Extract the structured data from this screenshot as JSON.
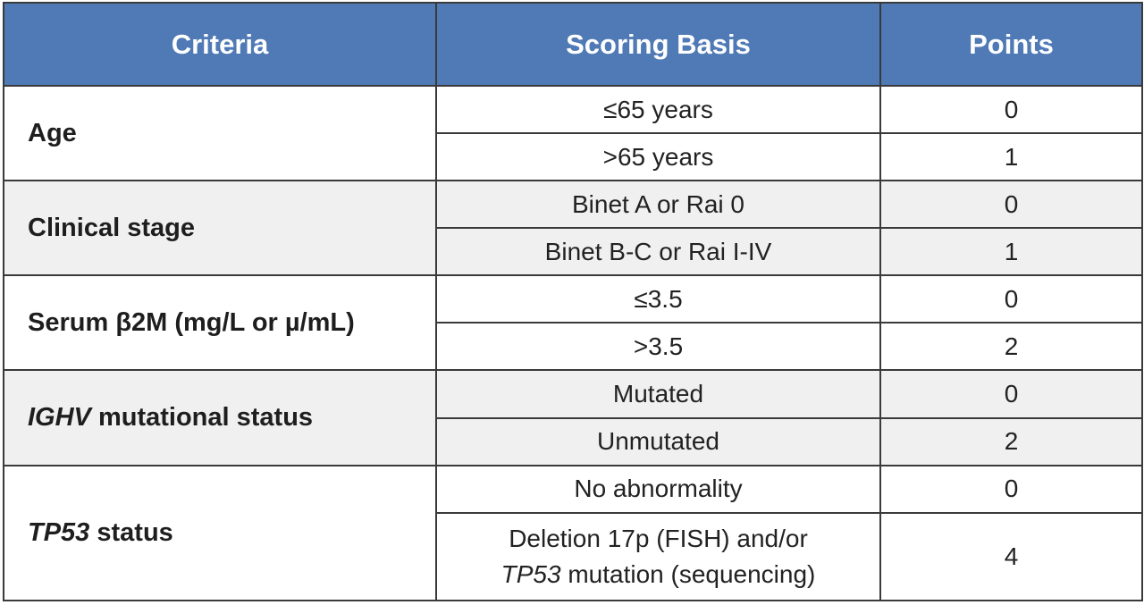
{
  "headers": {
    "criteria": "Criteria",
    "scoring_basis": "Scoring Basis",
    "points": "Points"
  },
  "colors": {
    "header_bg": "#4f7ab5",
    "header_text": "#ffffff",
    "shaded_row_bg": "#f0f0f0",
    "border": "#3a3a3a"
  },
  "groups": [
    {
      "criteria": "Age",
      "rows": [
        {
          "basis": "≤65 years",
          "points": "0"
        },
        {
          "basis": ">65 years",
          "points": "1"
        }
      ]
    },
    {
      "criteria": "Clinical stage",
      "rows": [
        {
          "basis": "Binet A or Rai 0",
          "points": "0"
        },
        {
          "basis": "Binet B-C or Rai I-IV",
          "points": "1"
        }
      ]
    },
    {
      "criteria": "Serum β2M (mg/L or µ/mL)",
      "rows": [
        {
          "basis": "≤3.5",
          "points": "0"
        },
        {
          "basis": ">3.5",
          "points": "2"
        }
      ]
    },
    {
      "criteria_italic": "IGHV",
      "criteria_rest": " mutational status",
      "rows": [
        {
          "basis": "Mutated",
          "points": "0"
        },
        {
          "basis": "Unmutated",
          "points": "2"
        }
      ]
    },
    {
      "criteria_italic": "TP53",
      "criteria_rest": " status",
      "rows": [
        {
          "basis": "No abnormality",
          "points": "0"
        },
        {
          "basis_line1": "Deletion 17p (FISH) and/or",
          "basis_line2_italic": "TP53",
          "basis_line2_rest": " mutation (sequencing)",
          "points": "4"
        }
      ]
    }
  ]
}
